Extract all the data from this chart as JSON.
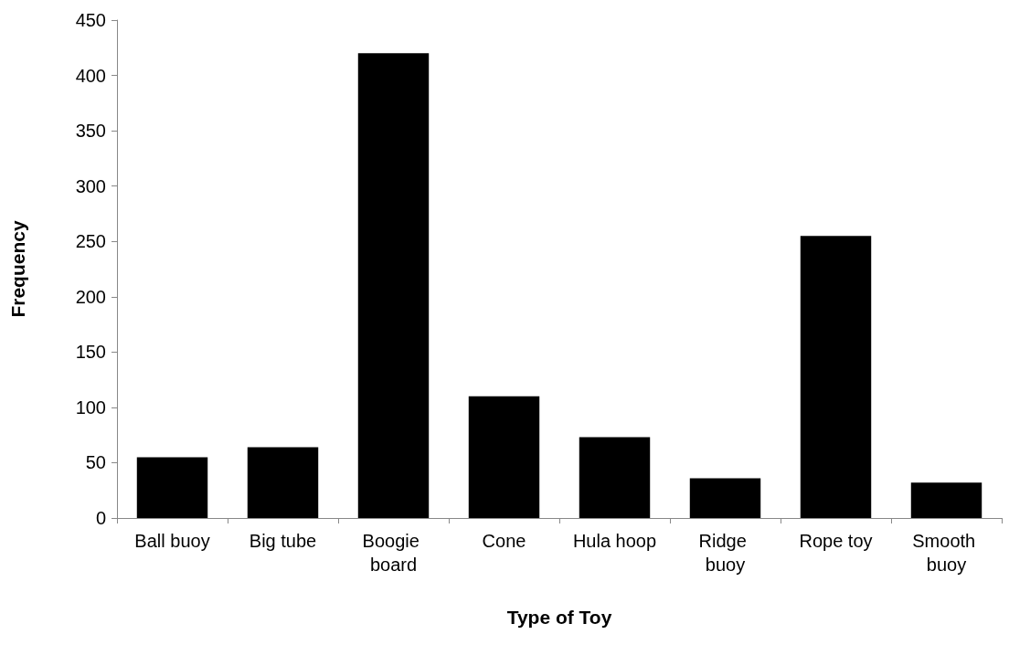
{
  "chart_data": {
    "type": "bar",
    "xlabel": "Type of Toy",
    "ylabel": "Frequency",
    "categories": [
      "Ball buoy",
      "Big tube",
      "Boogie board",
      "Cone",
      "Hula hoop",
      "Ridge buoy",
      "Rope toy",
      "Smooth buoy"
    ],
    "values": [
      55,
      64,
      420,
      110,
      73,
      36,
      255,
      32
    ],
    "color": "#000000",
    "ylim": [
      0,
      450
    ],
    "yticks": [
      0,
      50,
      100,
      150,
      200,
      250,
      300,
      350,
      400,
      450
    ],
    "grid": false
  }
}
